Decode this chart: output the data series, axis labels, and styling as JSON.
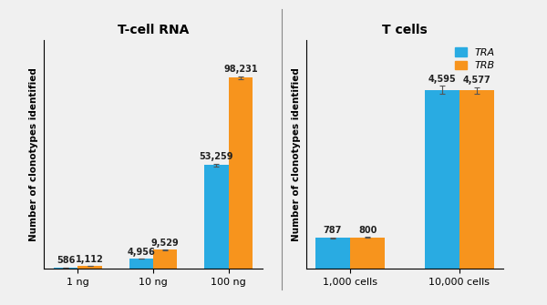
{
  "chart1_title": "T-cell RNA",
  "chart2_title": "T cells",
  "ylabel": "Number of clonotypes identified",
  "color_TRA": "#29ABE2",
  "color_TRB": "#F7941D",
  "bg_color": "#F0F0F0",
  "chart1_categories": [
    "1 ng",
    "10 ng",
    "100 ng"
  ],
  "chart1_TRA": [
    586,
    4956,
    53259
  ],
  "chart1_TRB": [
    1112,
    9529,
    98231
  ],
  "chart1_TRA_err": [
    8,
    70,
    600
  ],
  "chart1_TRB_err": [
    15,
    120,
    900
  ],
  "chart1_labels_TRA": [
    "586",
    "4,956",
    "53,259"
  ],
  "chart1_labels_TRB": [
    "1,112",
    "9,529",
    "98,231"
  ],
  "chart2_categories": [
    "1,000 cells",
    "10,000 cells"
  ],
  "chart2_TRA": [
    787,
    4595
  ],
  "chart2_TRB": [
    800,
    4577
  ],
  "chart2_TRA_err": [
    12,
    100
  ],
  "chart2_TRB_err": [
    8,
    80
  ],
  "chart2_labels_TRA": [
    "787",
    "4,595"
  ],
  "chart2_labels_TRB": [
    "800",
    "4,577"
  ],
  "legend_TRA": "TRA",
  "legend_TRB": "TRB",
  "bar_width": 0.32,
  "title_fontsize": 10,
  "label_fontsize": 7,
  "tick_fontsize": 8,
  "ylabel_fontsize": 7.5
}
